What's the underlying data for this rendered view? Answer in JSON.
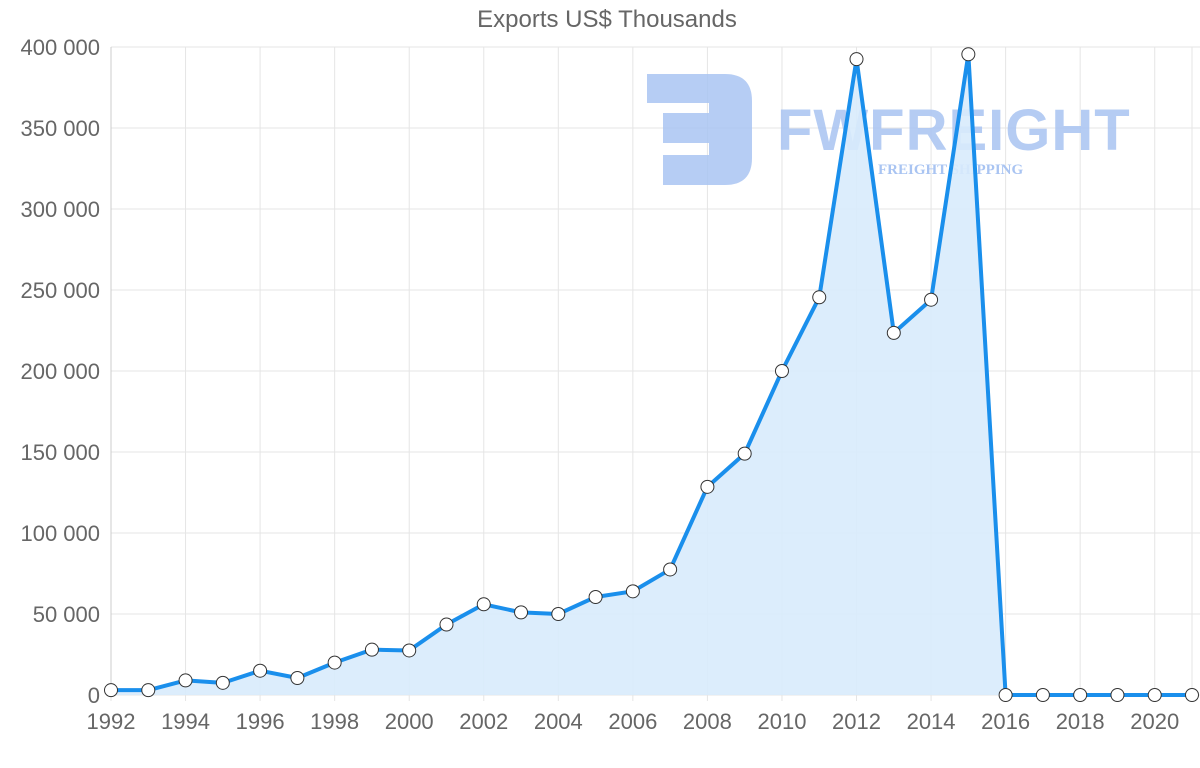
{
  "chart_data": {
    "type": "area",
    "title": "Exports US$ Thousands",
    "xlabel": "",
    "ylabel": "",
    "x": [
      1992,
      1993,
      1994,
      1995,
      1996,
      1997,
      1998,
      1999,
      2000,
      2001,
      2002,
      2003,
      2004,
      2005,
      2006,
      2007,
      2008,
      2009,
      2010,
      2011,
      2012,
      2013,
      2014,
      2015,
      2016,
      2017,
      2018,
      2019,
      2020,
      2021
    ],
    "series": [
      {
        "name": "Exports US$ Thousands",
        "values": [
          3000,
          3000,
          9000,
          7500,
          15000,
          10500,
          20000,
          28000,
          27500,
          43500,
          56000,
          51000,
          50000,
          60500,
          64000,
          77500,
          128500,
          149000,
          200000,
          245500,
          392500,
          223500,
          244000,
          395500,
          0,
          0,
          0,
          0,
          0,
          0
        ]
      }
    ],
    "ylim": [
      0,
      400000
    ],
    "yticks": [
      0,
      50000,
      100000,
      150000,
      200000,
      250000,
      300000,
      350000,
      400000
    ],
    "ytick_labels": [
      "0",
      "50 000",
      "100 000",
      "150 000",
      "200 000",
      "250 000",
      "300 000",
      "350 000",
      "400 000"
    ],
    "xtick_labels": [
      "1992",
      "1994",
      "1996",
      "1998",
      "2000",
      "2002",
      "2004",
      "2006",
      "2008",
      "2010",
      "2012",
      "2014",
      "2016",
      "2018",
      "2020"
    ],
    "grid": true,
    "legend": "none",
    "colors": {
      "line": "#1a8fec",
      "fill": "#d8ebfc",
      "grid": "#e5e5e5",
      "text": "#666666",
      "marker_fill": "#ffffff",
      "marker_stroke": "#333333"
    }
  },
  "watermark": {
    "brand": "FWFREIGHT",
    "tagline": "FREIGHT SHIPPING",
    "color": "#a9c4f2"
  }
}
